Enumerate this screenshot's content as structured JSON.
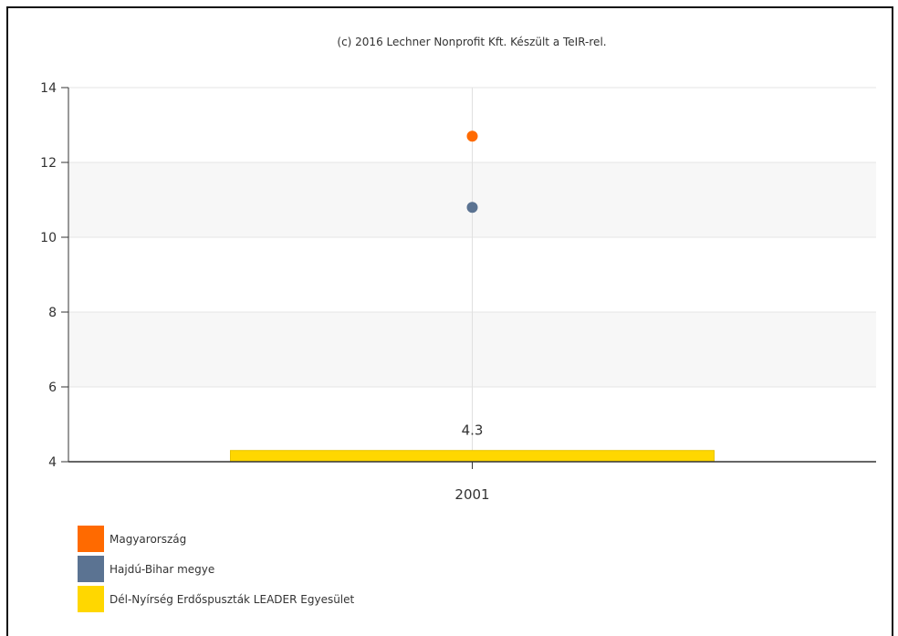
{
  "chart_data": {
    "type": "scatter",
    "title": "(c) 2016 Lechner Nonprofit Kft. Készült a TeIR-rel.",
    "categories": [
      "2001"
    ],
    "ylim": [
      4,
      14
    ],
    "yticks": [
      4,
      6,
      8,
      10,
      12,
      14
    ],
    "grid": true,
    "legend_position": "bottom-left",
    "series": [
      {
        "name": "Magyarország",
        "type": "point",
        "color": "#FF6A00",
        "values": [
          12.7
        ]
      },
      {
        "name": "Hajdú-Bihar megye",
        "type": "point",
        "color": "#5B7392",
        "values": [
          10.8
        ]
      },
      {
        "name": "Dél-Nyírség Erdőspuszták LEADER Egyesület",
        "type": "bar",
        "color": "#FFD700",
        "values": [
          4.3
        ],
        "data_label": "4.3"
      }
    ]
  }
}
